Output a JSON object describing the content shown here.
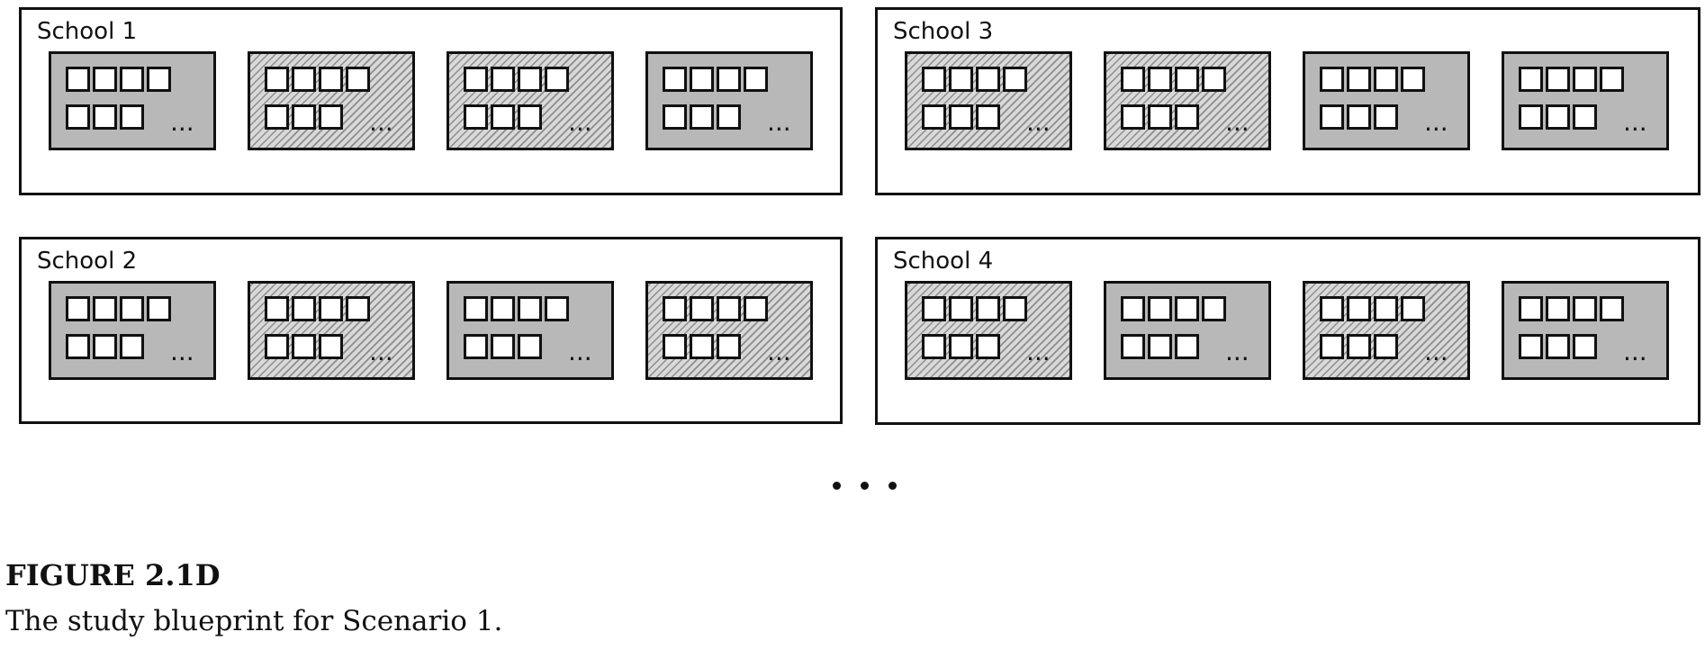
{
  "schools": [
    {
      "label": "School 1",
      "classrooms": [
        "control",
        "treatment",
        "treatment",
        "control"
      ]
    },
    {
      "label": "School 2",
      "classrooms": [
        "control",
        "treatment",
        "control",
        "treatment"
      ]
    },
    {
      "label": "School 3",
      "classrooms": [
        "treatment",
        "treatment",
        "control",
        "control"
      ]
    },
    {
      "label": "School 4",
      "classrooms": [
        "treatment",
        "control",
        "treatment",
        "control"
      ]
    }
  ],
  "classroom_seats": {
    "row1_boxes": 4,
    "row2_boxes": 3,
    "row2_suffix": "..."
  },
  "continuation_marker": "• • •",
  "figure": {
    "label": "FIGURE 2.1D",
    "caption": "The study blueprint for Scenario 1."
  },
  "colors": {
    "line": "#111111",
    "classroom_fill": "#b8b8b8",
    "hatch": "#8c8c8c",
    "seat_fill": "#ffffff"
  }
}
